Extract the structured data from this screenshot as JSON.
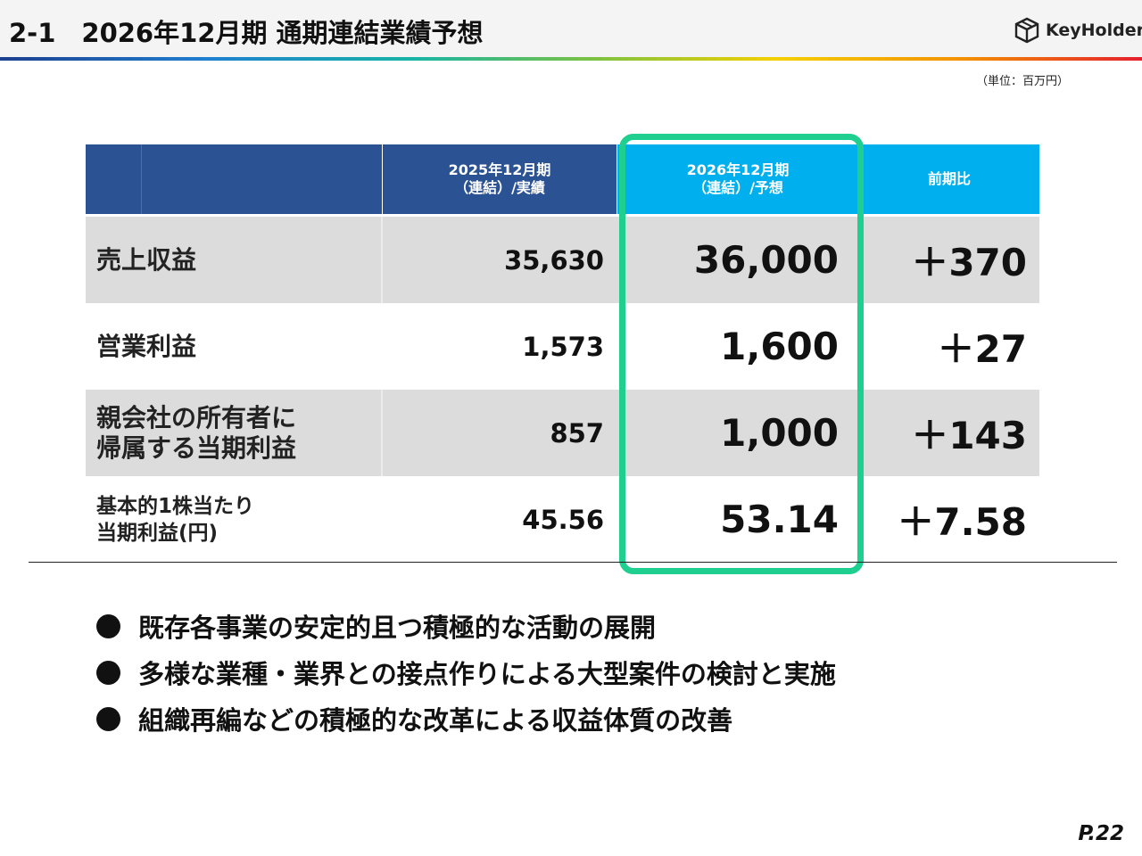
{
  "header": {
    "title": "2-1　2026年12月期 通期連結業績予想",
    "logo_text": "KeyHolder",
    "logo_icon": "cube-icon"
  },
  "unit_note": "（単位：百万円）",
  "table": {
    "columns": [
      {
        "line1": "2025年12月期",
        "line2": "（連結）/実績"
      },
      {
        "line1": "2026年12月期",
        "line2": "（連結）/予想"
      },
      {
        "line1": "前期比",
        "line2": ""
      }
    ],
    "rows": [
      {
        "label1": "売上収益",
        "label2": "",
        "actual_2025": "35,630",
        "forecast_2026": "36,000",
        "change": "＋370"
      },
      {
        "label1": "営業利益",
        "label2": "",
        "actual_2025": "1,573",
        "forecast_2026": "1,600",
        "change": "＋27"
      },
      {
        "label1": "親会社の所有者に",
        "label2": "帰属する当期利益",
        "actual_2025": "857",
        "forecast_2026": "1,000",
        "change": "＋143"
      },
      {
        "label1": "基本的1株当たり",
        "label2": "当期利益(円)",
        "actual_2025": "45.56",
        "forecast_2026": "53.14",
        "change": "＋7.58"
      }
    ]
  },
  "bullets": [
    "既存各事業の安定的且つ積極的な活動の展開",
    "多様な業種・業界との接点作りによる大型案件の検討と実施",
    "組織再編などの積極的な改革による収益体質の改善"
  ],
  "colors": {
    "header_dark": "#2b5292",
    "header_light": "#00b0ee",
    "highlight": "#1fcf8f",
    "row_gray": "#dcdcdc"
  },
  "page_number": "P.22"
}
